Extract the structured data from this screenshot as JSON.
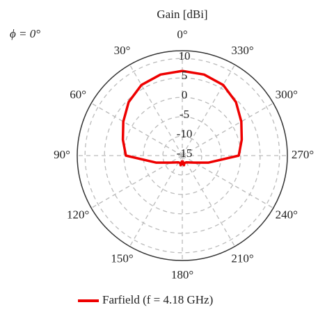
{
  "chart_data": {
    "type": "polar",
    "title": "Gain [dBi]",
    "annotation": "ϕ = 0°",
    "theta_direction": "counterclockwise",
    "theta_zero": "top",
    "theta": [
      0,
      15,
      30,
      45,
      60,
      75,
      90,
      105,
      120,
      135,
      150,
      165,
      170,
      175,
      180,
      185,
      190,
      195,
      210,
      225,
      240,
      255,
      270,
      285,
      300,
      315,
      330,
      345,
      360
    ],
    "series": [
      {
        "name": "Farfield (f = 4.18 GHz)",
        "color": "#ee0000",
        "values": [
          6.8,
          6.6,
          6.0,
          4.5,
          2.5,
          0.8,
          -0.5,
          -8,
          -11.4,
          -12.5,
          -13,
          -13,
          -12.5,
          -13.5,
          -12.8,
          -13.5,
          -12.5,
          -13,
          -13,
          -12.5,
          -11.4,
          -8,
          -0.5,
          0.8,
          2.5,
          4.5,
          6.0,
          6.6,
          6.8
        ]
      }
    ],
    "rlim": [
      -15,
      12
    ],
    "rticks": [
      -15,
      -10,
      -5,
      0,
      5,
      10
    ],
    "thetaticks": [
      {
        "value": 0,
        "label": "0°"
      },
      {
        "value": 30,
        "label": "30°"
      },
      {
        "value": 60,
        "label": "60°"
      },
      {
        "value": 90,
        "label": "90°"
      },
      {
        "value": 120,
        "label": "120°"
      },
      {
        "value": 150,
        "label": "150°"
      },
      {
        "value": 180,
        "label": "180°"
      },
      {
        "value": 210,
        "label": "210°"
      },
      {
        "value": 240,
        "label": "240°"
      },
      {
        "value": 270,
        "label": "270°"
      },
      {
        "value": 300,
        "label": "300°"
      },
      {
        "value": 330,
        "label": "330°"
      }
    ],
    "grid": true
  }
}
